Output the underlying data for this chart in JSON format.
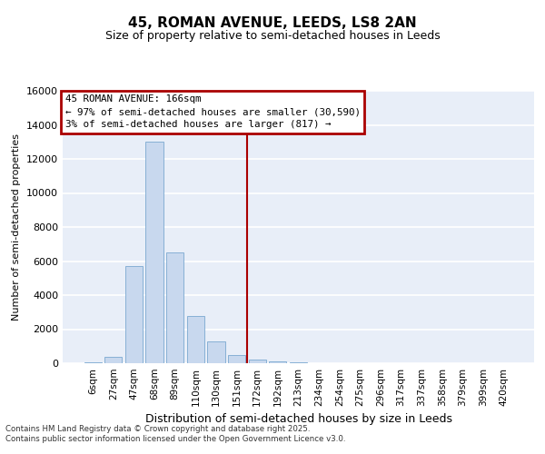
{
  "title": "45, ROMAN AVENUE, LEEDS, LS8 2AN",
  "subtitle": "Size of property relative to semi-detached houses in Leeds",
  "xlabel": "Distribution of semi-detached houses by size in Leeds",
  "ylabel": "Number of semi-detached properties",
  "categories": [
    "6sqm",
    "27sqm",
    "47sqm",
    "68sqm",
    "89sqm",
    "110sqm",
    "130sqm",
    "151sqm",
    "172sqm",
    "192sqm",
    "213sqm",
    "234sqm",
    "254sqm",
    "275sqm",
    "296sqm",
    "317sqm",
    "337sqm",
    "358sqm",
    "379sqm",
    "399sqm",
    "420sqm"
  ],
  "values": [
    50,
    400,
    5700,
    13000,
    6500,
    2800,
    1300,
    500,
    200,
    100,
    50,
    25,
    10,
    5,
    3,
    2,
    1,
    1,
    0,
    0,
    0
  ],
  "bar_color": "#c8d8ee",
  "bar_edge_color": "#7aa8d0",
  "annotation_line1": "45 ROMAN AVENUE: 166sqm",
  "annotation_line2": "← 97% of semi-detached houses are smaller (30,590)",
  "annotation_line3": "3% of semi-detached houses are larger (817) →",
  "vline_color": "#aa0000",
  "box_edge_color": "#aa0000",
  "vline_x": 7.5,
  "ylim": [
    0,
    16000
  ],
  "yticks": [
    0,
    2000,
    4000,
    6000,
    8000,
    10000,
    12000,
    14000,
    16000
  ],
  "footer_line1": "Contains HM Land Registry data © Crown copyright and database right 2025.",
  "footer_line2": "Contains public sector information licensed under the Open Government Licence v3.0.",
  "background_color": "#e8eef8",
  "grid_color": "#ffffff"
}
